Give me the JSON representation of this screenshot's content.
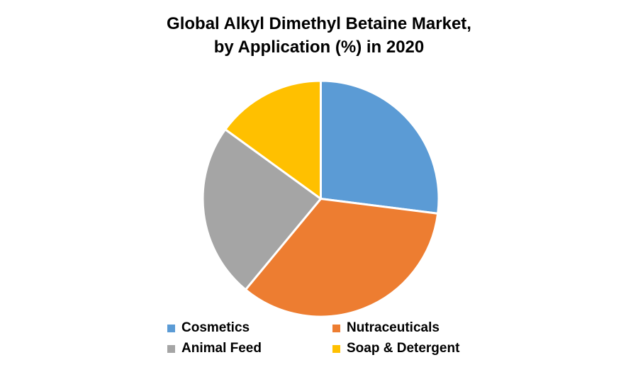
{
  "title": {
    "lines": [
      "Global Alkyl Dimethyl Betaine Market,",
      "by Application (%) in 2020"
    ]
  },
  "chart_data": {
    "type": "pie",
    "title": "Global Alkyl Dimethyl Betaine Market, by Application (%) in 2020",
    "unit": "%",
    "start_angle_deg": 0,
    "direction": "clockwise",
    "slices": [
      {
        "label": "Cosmetics",
        "value": 27,
        "color": "#5B9BD5"
      },
      {
        "label": "Nutraceuticals",
        "value": 34,
        "color": "#ED7D31"
      },
      {
        "label": "Animal Feed",
        "value": 24,
        "color": "#A5A5A5"
      },
      {
        "label": "Soap & Detergent",
        "value": 15,
        "color": "#FFC000"
      }
    ],
    "data_labels_shown": false,
    "legend_position": "bottom",
    "legend_columns": 2,
    "slice_border_color": "#FFFFFF",
    "background_color": "#FFFFFF",
    "text_color": "#000000"
  }
}
